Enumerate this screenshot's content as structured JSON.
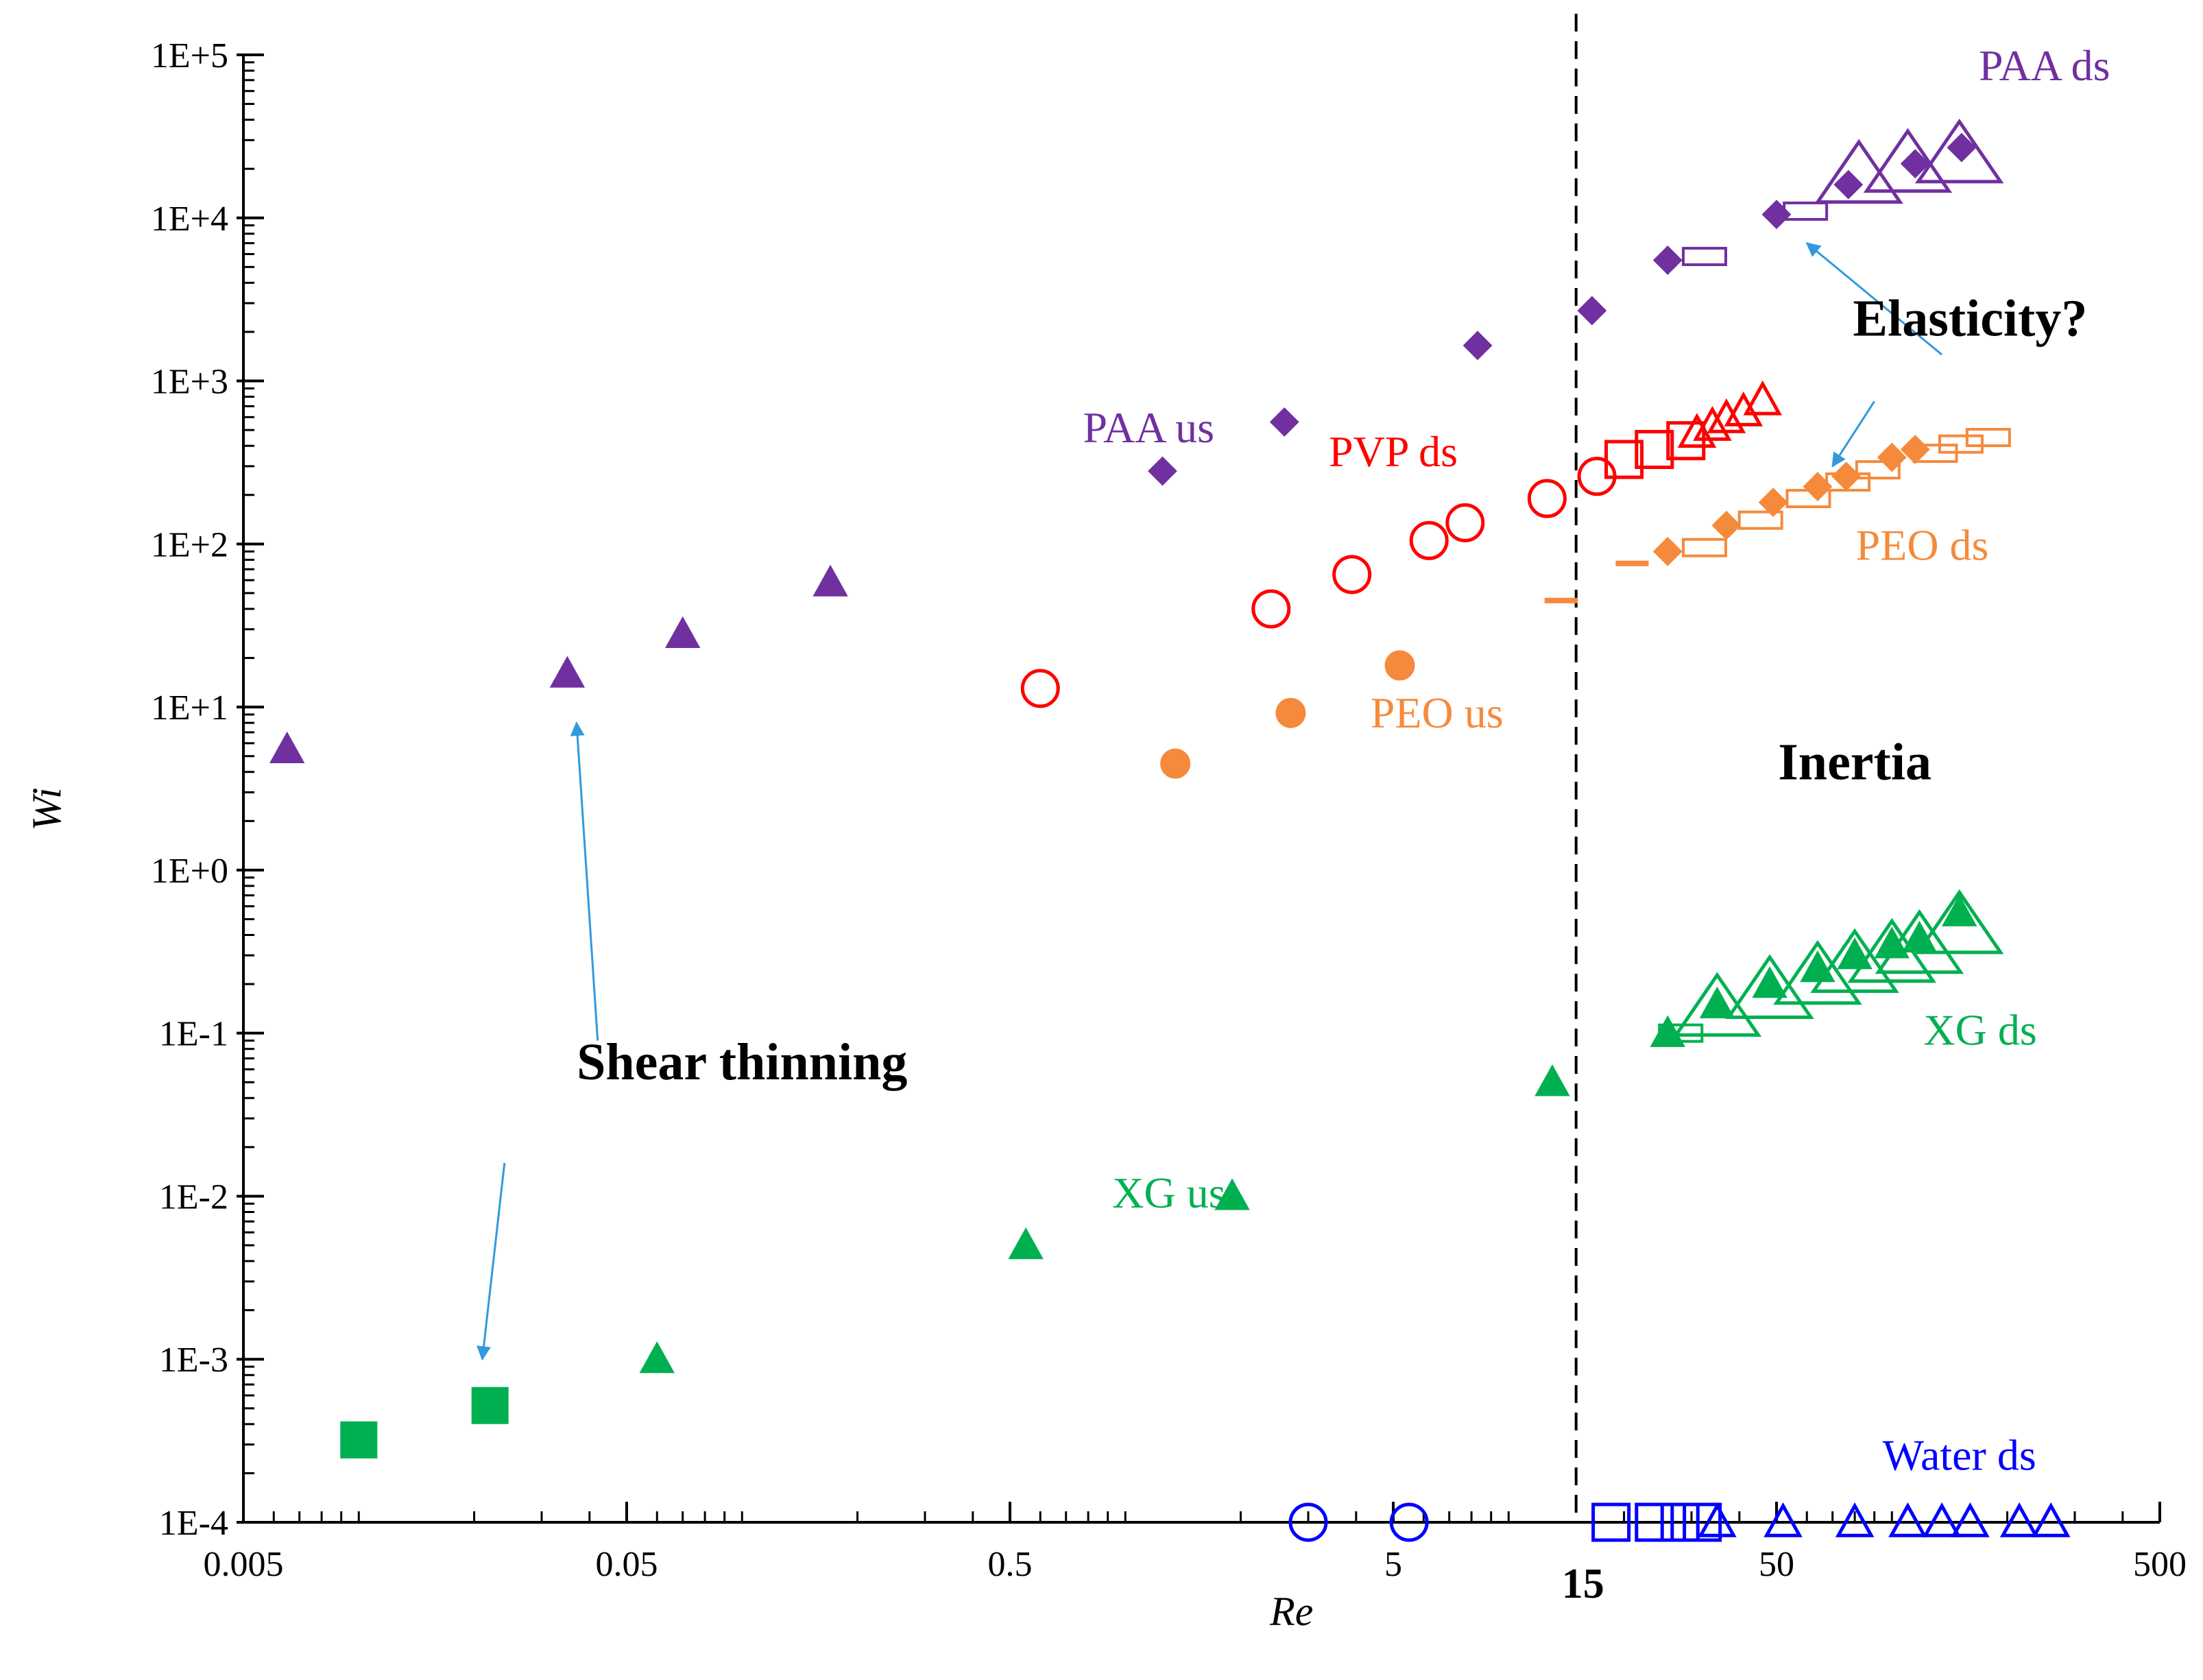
{
  "colors": {
    "purple": "#7030A0",
    "red": "#FF0000",
    "orange": "#F58A3C",
    "green": "#00B050",
    "blue": "#0000FF",
    "arrow": "#3399DD",
    "text": "#000000"
  },
  "chart_data": {
    "type": "scatter",
    "x_scale": "log",
    "y_scale": "log",
    "xlim": [
      0.005,
      500
    ],
    "ylim": [
      0.0001,
      100000
    ],
    "xlabel": "Re",
    "ylabel": "Wi",
    "x_ticks": [
      "0.005",
      "0.05",
      "0.5",
      "5",
      "50",
      "500"
    ],
    "x_tick_values": [
      0.005,
      0.05,
      0.5,
      5,
      50,
      500
    ],
    "y_ticks": [
      "1E-4",
      "1E-3",
      "1E-2",
      "1E-1",
      "1E+0",
      "1E+1",
      "1E+2",
      "1E+3",
      "1E+4",
      "1E+5"
    ],
    "y_tick_values": [
      0.0001,
      0.001,
      0.01,
      0.1,
      1,
      10,
      100,
      1000,
      10000,
      100000
    ],
    "boundary": {
      "x": 15,
      "label": "15",
      "style": "dashed"
    },
    "series_labels": [
      {
        "text": "PAA us",
        "color": "purple",
        "x": 1.15,
        "y": 420
      },
      {
        "text": "PAA ds",
        "color": "purple",
        "x": 250,
        "y": 70000
      },
      {
        "text": "PVP ds",
        "color": "red",
        "x": 5,
        "y": 300
      },
      {
        "text": "PEO ds",
        "color": "orange",
        "x": 120,
        "y": 80
      },
      {
        "text": "PEO us",
        "color": "orange",
        "x": 6.5,
        "y": 7.5
      },
      {
        "text": "XG ds",
        "color": "green",
        "x": 170,
        "y": 0.085
      },
      {
        "text": "XG us",
        "color": "green",
        "x": 1.3,
        "y": 0.0085
      },
      {
        "text": "Water ds",
        "color": "blue",
        "x": 150,
        "y": 0.00021
      }
    ],
    "annotations": [
      {
        "text": "Elasticity?",
        "x": 160,
        "y": 1900
      },
      {
        "text": "Shear thinning",
        "x": 0.1,
        "y": 0.052
      },
      {
        "text": "Inertia",
        "x": 80,
        "y": 3.6
      }
    ],
    "arrows": [
      {
        "from": [
          135,
          1450
        ],
        "to": [
          60,
          7000
        ]
      },
      {
        "from": [
          90,
          750
        ],
        "to": [
          70,
          300
        ]
      },
      {
        "from": [
          0.042,
          0.09
        ],
        "to": [
          0.037,
          8
        ]
      },
      {
        "from": [
          0.024,
          0.016
        ],
        "to": [
          0.021,
          0.001
        ]
      }
    ],
    "series": [
      {
        "name": "PAA us",
        "marker": "diamond",
        "fill": "solid",
        "color": "purple",
        "points": [
          [
            1.25,
            280
          ],
          [
            2.6,
            560
          ],
          [
            8.3,
            1650
          ],
          [
            16.5,
            2700
          ]
        ]
      },
      {
        "name": "PAA us (triangles)",
        "marker": "triangle",
        "fill": "solid",
        "color": "purple",
        "points": [
          [
            0.0065,
            5.5
          ],
          [
            0.035,
            16
          ],
          [
            0.07,
            28
          ],
          [
            0.17,
            58
          ]
        ]
      },
      {
        "name": "PAA ds",
        "marker": "diamond",
        "fill": "solid",
        "color": "purple",
        "points": [
          [
            26,
            5500
          ],
          [
            50,
            10500
          ],
          [
            77,
            16000
          ],
          [
            115,
            21500
          ],
          [
            152,
            27000
          ]
        ]
      },
      {
        "name": "PAA ds (open rectangles)",
        "marker": "rect-wide",
        "fill": "open",
        "color": "purple",
        "points": [
          [
            30,
            5800
          ],
          [
            55,
            11000
          ]
        ]
      },
      {
        "name": "PAA ds (open triangles)",
        "marker": "triangle-large",
        "fill": "open",
        "color": "purple",
        "points": [
          [
            82,
            18000
          ],
          [
            110,
            21000
          ],
          [
            150,
            24000
          ]
        ]
      },
      {
        "name": "PVP circles",
        "marker": "circle",
        "fill": "open",
        "color": "red",
        "points": [
          [
            0.6,
            13
          ],
          [
            2.4,
            40
          ],
          [
            3.9,
            65
          ],
          [
            6.2,
            105
          ],
          [
            7.7,
            135
          ],
          [
            12.6,
            190
          ],
          [
            17,
            260
          ]
        ]
      },
      {
        "name": "PVP ds squares",
        "marker": "square",
        "fill": "open",
        "color": "red",
        "points": [
          [
            20,
            330
          ],
          [
            24,
            380
          ],
          [
            29,
            430
          ]
        ]
      },
      {
        "name": "PVP ds triangles",
        "marker": "triangle",
        "fill": "open",
        "color": "red",
        "points": [
          [
            31,
            480
          ],
          [
            34,
            530
          ],
          [
            37,
            590
          ],
          [
            41,
            650
          ],
          [
            46,
            760
          ]
        ]
      },
      {
        "name": "PEO us",
        "marker": "circle",
        "fill": "solid",
        "color": "orange",
        "points": [
          [
            1.35,
            4.5
          ],
          [
            2.7,
            9.2
          ],
          [
            5.2,
            18
          ]
        ]
      },
      {
        "name": "PEO dashes",
        "marker": "dash",
        "fill": "solid",
        "color": "orange",
        "points": [
          [
            13.7,
            45
          ],
          [
            21,
            76
          ]
        ]
      },
      {
        "name": "PEO ds",
        "marker": "diamond",
        "fill": "solid",
        "color": "orange",
        "points": [
          [
            26,
            90
          ],
          [
            37,
            130
          ],
          [
            49,
            180
          ],
          [
            64,
            225
          ],
          [
            76,
            260
          ],
          [
            100,
            340
          ],
          [
            115,
            380
          ]
        ]
      },
      {
        "name": "PEO ds (open rectangles)",
        "marker": "rect-wide",
        "fill": "open",
        "color": "orange",
        "points": [
          [
            30,
            95
          ],
          [
            42,
            140
          ],
          [
            56,
            190
          ],
          [
            71,
            240
          ],
          [
            85,
            285
          ],
          [
            120,
            360
          ],
          [
            140,
            410
          ],
          [
            165,
            450
          ]
        ]
      },
      {
        "name": "XG us",
        "marker": "triangle",
        "fill": "solid",
        "color": "green",
        "points": [
          [
            0.06,
            0.001
          ],
          [
            0.55,
            0.005
          ],
          [
            1.9,
            0.01
          ],
          [
            13,
            0.05
          ]
        ]
      },
      {
        "name": "XG us squares",
        "marker": "square",
        "fill": "solid",
        "color": "green",
        "points": [
          [
            0.01,
            0.00032
          ],
          [
            0.022,
            0.00052
          ]
        ]
      },
      {
        "name": "XG ds",
        "marker": "triangle",
        "fill": "solid",
        "color": "green",
        "points": [
          [
            26,
            0.1
          ],
          [
            35,
            0.15
          ],
          [
            48,
            0.2
          ],
          [
            64,
            0.25
          ],
          [
            80,
            0.3
          ],
          [
            100,
            0.35
          ],
          [
            118,
            0.38
          ],
          [
            150,
            0.55
          ]
        ]
      },
      {
        "name": "XG ds (open rectangles)",
        "marker": "rect-wide",
        "fill": "open",
        "color": "green",
        "points": [
          [
            26,
            0.1
          ]
        ]
      },
      {
        "name": "XG ds (open triangles)",
        "marker": "triangle-large",
        "fill": "open",
        "color": "green",
        "points": [
          [
            35,
            0.14
          ],
          [
            48,
            0.18
          ],
          [
            64,
            0.22
          ],
          [
            80,
            0.26
          ],
          [
            100,
            0.3
          ],
          [
            118,
            0.34
          ],
          [
            150,
            0.45
          ]
        ]
      },
      {
        "name": "Water us circles",
        "marker": "circle",
        "fill": "open",
        "color": "blue",
        "points": [
          [
            3,
            0.0001
          ],
          [
            5.5,
            0.0001
          ]
        ]
      },
      {
        "name": "Water ds squares",
        "marker": "square",
        "fill": "open",
        "color": "blue",
        "points": [
          [
            18.5,
            0.0001
          ],
          [
            24,
            0.0001
          ],
          [
            28,
            0.0001
          ],
          [
            32,
            0.0001
          ]
        ]
      },
      {
        "name": "Water ds",
        "marker": "triangle",
        "fill": "open",
        "color": "blue",
        "points": [
          [
            35,
            0.0001
          ],
          [
            52,
            0.0001
          ],
          [
            80,
            0.0001
          ],
          [
            110,
            0.0001
          ],
          [
            135,
            0.0001
          ],
          [
            160,
            0.0001
          ],
          [
            215,
            0.0001
          ],
          [
            260,
            0.0001
          ]
        ]
      }
    ]
  }
}
